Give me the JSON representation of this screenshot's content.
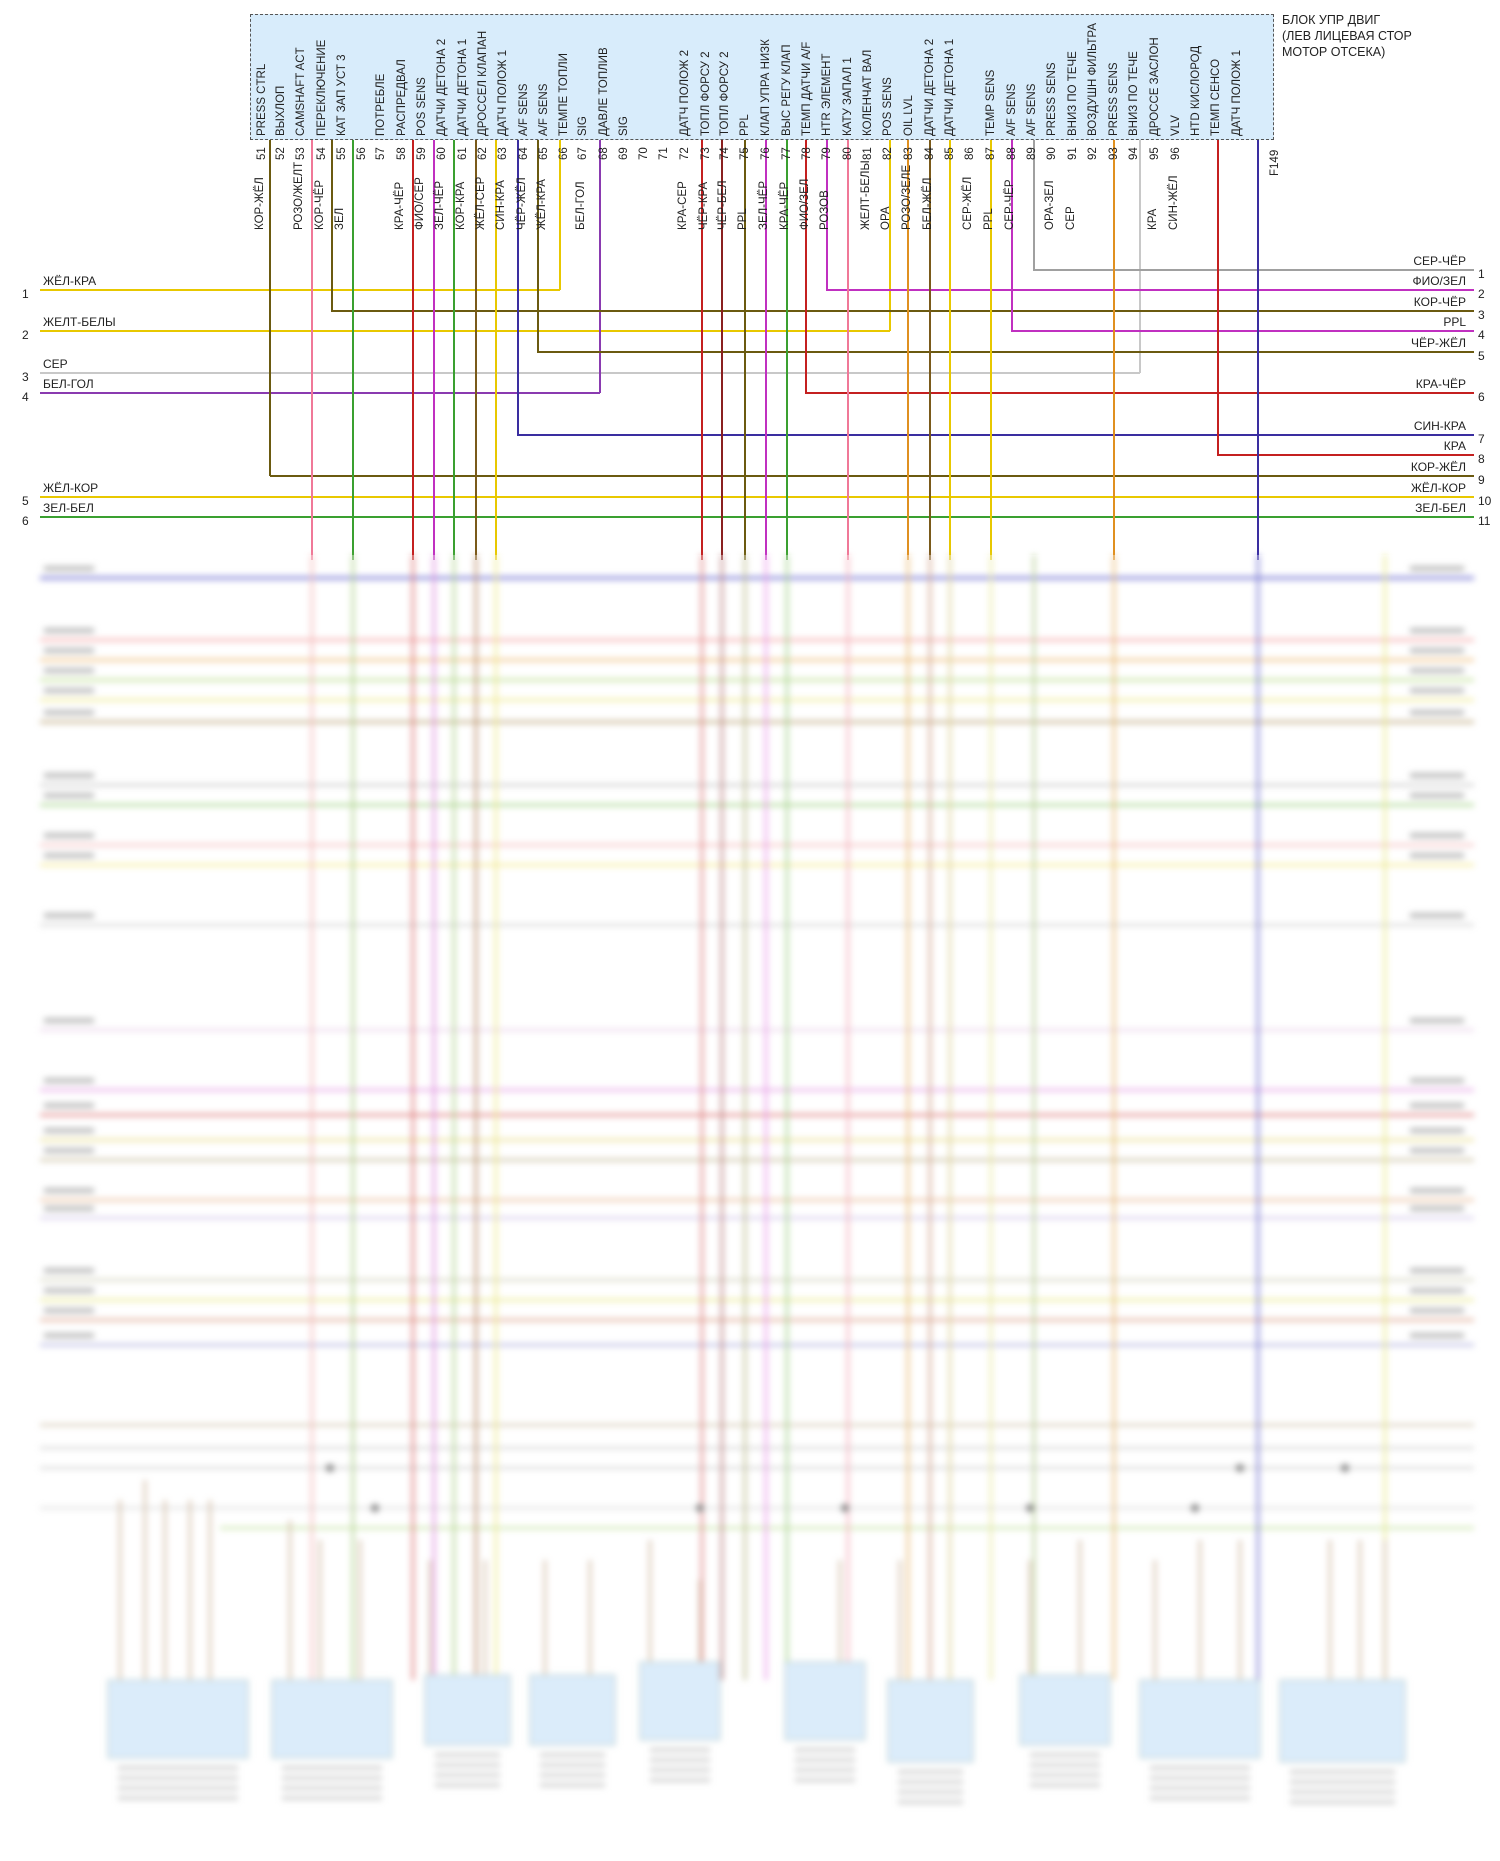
{
  "ecu": {
    "title_lines": [
      "БЛОК УПР ДВИГ",
      "(ЛЕВ ЛИЦЕВАЯ СТОР",
      "МОТОР ОТСЕКА)"
    ],
    "connector": "F149",
    "pins": [
      {
        "num": "51",
        "fn": "PRESS CTRL",
        "wire": "КОР-ЖЁЛ"
      },
      {
        "num": "52",
        "fn": "ВЫХЛОП",
        "wire": ""
      },
      {
        "num": "53",
        "fn": "CAMSHAFT ACT",
        "wire": "РОЗО/ЖЕЛТ"
      },
      {
        "num": "54",
        "fn": "ПЕРЕКЛЮЧЕНИЕ",
        "wire": "КОР-ЧЁР"
      },
      {
        "num": "55",
        "fn": "КАТ ЗАП УСТ 3",
        "wire": "ЗЕЛ"
      },
      {
        "num": "56",
        "fn": "",
        "wire": ""
      },
      {
        "num": "57",
        "fn": "ПОТРЕБЛЕ",
        "wire": ""
      },
      {
        "num": "58",
        "fn": "РАСПРЕДВАЛ",
        "wire": "КРА-ЧЁР"
      },
      {
        "num": "59",
        "fn": "POS SENS",
        "wire": "ФИО/СЕР"
      },
      {
        "num": "60",
        "fn": "ДАТЧИ ДЕТОНА 2",
        "wire": "ЗЕЛ-ЧЁР"
      },
      {
        "num": "61",
        "fn": "ДАТЧИ ДЕТОНА 1",
        "wire": "КОР-КРА"
      },
      {
        "num": "62",
        "fn": "ДРОССЕЛ КЛАПАН",
        "wire": "ЖЁЛ-СЕР"
      },
      {
        "num": "63",
        "fn": "ДАТЧ ПОЛОЖ 1",
        "wire": "СИН-КРА"
      },
      {
        "num": "64",
        "fn": "A/F SENS",
        "wire": "ЧЁР-ЖЁЛ"
      },
      {
        "num": "65",
        "fn": "A/F SENS",
        "wire": "ЖЁЛ-КРА"
      },
      {
        "num": "66",
        "fn": "ТЕМПЕ ТОПЛИ",
        "wire": ""
      },
      {
        "num": "67",
        "fn": "SIG",
        "wire": "БЕЛ-ГОЛ"
      },
      {
        "num": "68",
        "fn": "ДАВЛЕ ТОПЛИВ",
        "wire": ""
      },
      {
        "num": "69",
        "fn": "SIG",
        "wire": ""
      },
      {
        "num": "70",
        "fn": "",
        "wire": ""
      },
      {
        "num": "71",
        "fn": "",
        "wire": ""
      },
      {
        "num": "72",
        "fn": "ДАТЧ ПОЛОЖ 2",
        "wire": "КРА-СЕР"
      },
      {
        "num": "73",
        "fn": "ТОПЛ ФОРСУ 2",
        "wire": "ЧЁР-КРА"
      },
      {
        "num": "74",
        "fn": "ТОПЛ ФОРСУ 2",
        "wire": "ЧЁР-БЕЛ"
      },
      {
        "num": "75",
        "fn": "PPL",
        "wire": "PPL"
      },
      {
        "num": "76",
        "fn": "КЛАП УПРА НИЗК",
        "wire": "ЗЕЛ-ЧЁР"
      },
      {
        "num": "77",
        "fn": "ВЫС РЕГУ КЛАП",
        "wire": "КРА-ЧЁР"
      },
      {
        "num": "78",
        "fn": "ТЕМП ДАТЧИ A/F",
        "wire": "ФИО/ЗЕЛ"
      },
      {
        "num": "79",
        "fn": "HTR ЭЛЕМЕНТ",
        "wire": "РОЗОВ"
      },
      {
        "num": "80",
        "fn": "КАТУ ЗАПАЛ 1",
        "wire": ""
      },
      {
        "num": "81",
        "fn": "КОЛЕНЧАТ ВАЛ",
        "wire": "ЖЕЛТ-БЕЛЫ"
      },
      {
        "num": "82",
        "fn": "POS SENS",
        "wire": "ОРА"
      },
      {
        "num": "83",
        "fn": "OIL LVL",
        "wire": "РОЗО/ЗЕЛЕ"
      },
      {
        "num": "84",
        "fn": "ДАТЧИ ДЕТОНА 2",
        "wire": "БЕЛ-ЖЁЛ"
      },
      {
        "num": "85",
        "fn": "ДАТЧИ ДЕТОНА 1",
        "wire": ""
      },
      {
        "num": "86",
        "fn": "",
        "wire": "СЕР-ЖЁЛ"
      },
      {
        "num": "87",
        "fn": "TEMP SENS",
        "wire": "PPL"
      },
      {
        "num": "88",
        "fn": "A/F SENS",
        "wire": "СЕР-ЧЁР"
      },
      {
        "num": "89",
        "fn": "A/F SENS",
        "wire": ""
      },
      {
        "num": "90",
        "fn": "PRESS SENS",
        "wire": "ОРА-ЗЕЛ"
      },
      {
        "num": "91",
        "fn": "ВНИЗ ПО ТЕЧЕ",
        "wire": "СЕР"
      },
      {
        "num": "92",
        "fn": "ВОЗДУШН ФИЛЬТРА",
        "wire": ""
      },
      {
        "num": "93",
        "fn": "PRESS SENS",
        "wire": ""
      },
      {
        "num": "94",
        "fn": "ВНИЗ ПО ТЕЧЕ",
        "wire": ""
      },
      {
        "num": "95",
        "fn": "ДРОССЕ ЗАСЛОН",
        "wire": "КРА"
      },
      {
        "num": "96",
        "fn": "VLV",
        "wire": "СИН-ЖЁЛ"
      },
      {
        "num": "",
        "fn": "HTD КИСЛОРОД",
        "wire": ""
      },
      {
        "num": "",
        "fn": "ТЕМП СЕНСО",
        "wire": ""
      },
      {
        "num": "",
        "fn": "ДАТЧ ПОЛОЖ 1",
        "wire": ""
      }
    ]
  },
  "left_rows": [
    {
      "n": "1",
      "label": "ЖЁЛ-КРА"
    },
    {
      "n": "2",
      "label": "ЖЕЛТ-БЕЛЫ"
    },
    {
      "n": "3",
      "label": "СЕР"
    },
    {
      "n": "4",
      "label": "БЕЛ-ГОЛ"
    },
    {
      "n": "5",
      "label": "ЖЁЛ-КОР"
    },
    {
      "n": "6",
      "label": "ЗЕЛ-БЕЛ"
    }
  ],
  "right_rows": [
    {
      "n": "1",
      "label": "СЕР-ЧЁР"
    },
    {
      "n": "2",
      "label": "ФИО/ЗЕЛ"
    },
    {
      "n": "3",
      "label": "КОР-ЧЁР"
    },
    {
      "n": "4",
      "label": "PPL"
    },
    {
      "n": "5",
      "label": "ЧЁР-ЖЁЛ"
    },
    {
      "n": "6",
      "label": "КРА-ЧЁР"
    },
    {
      "n": "7",
      "label": "СИН-КРА"
    },
    {
      "n": "8",
      "label": "КРА"
    },
    {
      "n": "9",
      "label": "КОР-ЖЁЛ"
    },
    {
      "n": "10",
      "label": "ЖЁЛ-КОР"
    },
    {
      "n": "11",
      "label": "ЗЕЛ-БЕЛ"
    }
  ],
  "colors": {
    "yellow": "#e8c800",
    "brown": "#7a5a1a",
    "olive": "#6b5a10",
    "green": "#3aa030",
    "red": "#c42020",
    "magenta": "#c030c0",
    "gray": "#a0a0a0",
    "blue": "#3a2ea0",
    "orange": "#e09020",
    "pink": "#f07898",
    "darkred": "#8a2020",
    "lightgray": "#c8c8c8",
    "ltgreen": "#7ac040",
    "tan": "#c8a060",
    "purple": "#8a3ab0"
  }
}
